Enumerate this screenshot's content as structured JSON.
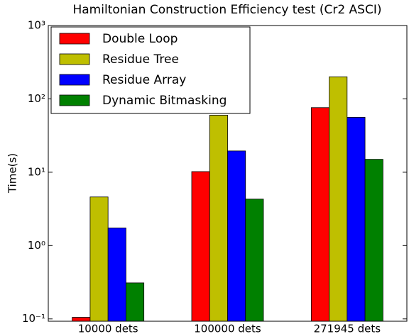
{
  "chart_data": {
    "type": "bar",
    "title": "Hamiltonian Construction Efficiency test (Cr2 ASCI)",
    "ylabel": "Time(s)",
    "categories": [
      "10000 dets",
      "100000 dets",
      "271945 dets"
    ],
    "series": [
      {
        "name": "Double Loop",
        "color": "#ff0000",
        "values": [
          0.105,
          10.2,
          76
        ]
      },
      {
        "name": "Residue Tree",
        "color": "#bfbf00",
        "values": [
          4.6,
          60,
          200
        ]
      },
      {
        "name": "Residue Array",
        "color": "#0000ff",
        "values": [
          1.74,
          19.5,
          56
        ]
      },
      {
        "name": "Dynamic Bitmasking",
        "color": "#008000",
        "values": [
          0.31,
          4.3,
          15
        ]
      }
    ],
    "log_y": true,
    "ylim": [
      0.093,
      1000
    ],
    "yticks": [
      {
        "value": 0.1,
        "label": "10⁻¹"
      },
      {
        "value": 1,
        "label": "10⁰"
      },
      {
        "value": 10,
        "label": "10¹"
      },
      {
        "value": 100,
        "label": "10²"
      },
      {
        "value": 1000,
        "label": "10³"
      }
    ],
    "legend": "upper left"
  }
}
